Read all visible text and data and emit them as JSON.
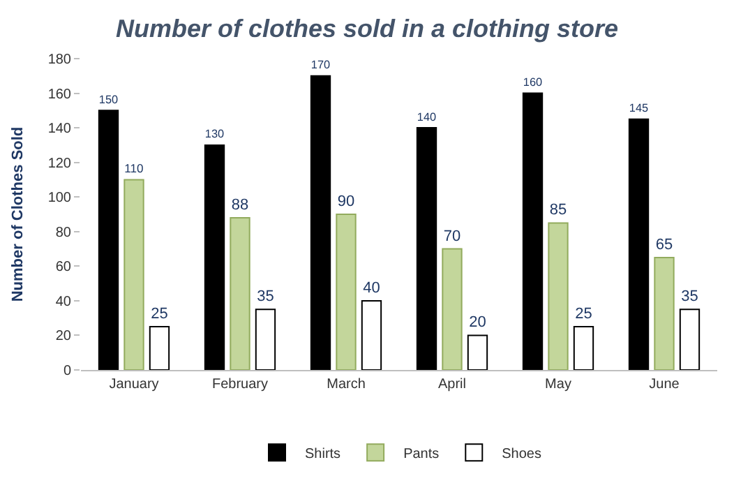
{
  "chart_data": {
    "type": "bar",
    "title": "Number of clothes sold in a clothing store",
    "ylabel": "Number of Clothes Sold",
    "categories": [
      "January",
      "February",
      "March",
      "April",
      "May",
      "June"
    ],
    "series": [
      {
        "name": "Shirts",
        "color": "#000000",
        "values": [
          150,
          130,
          170,
          140,
          160,
          145
        ]
      },
      {
        "name": "Pants",
        "color": "#c3d69b",
        "values": [
          110,
          88,
          90,
          70,
          85,
          65
        ]
      },
      {
        "name": "Shoes",
        "color": "#ffffff",
        "values": [
          25,
          35,
          40,
          20,
          25,
          35
        ]
      }
    ],
    "ylim": [
      0,
      180
    ],
    "yticks": [
      0,
      20,
      40,
      60,
      80,
      100,
      120,
      140,
      160,
      180
    ],
    "data_labels": true,
    "grid": false,
    "legend": "bottom"
  }
}
